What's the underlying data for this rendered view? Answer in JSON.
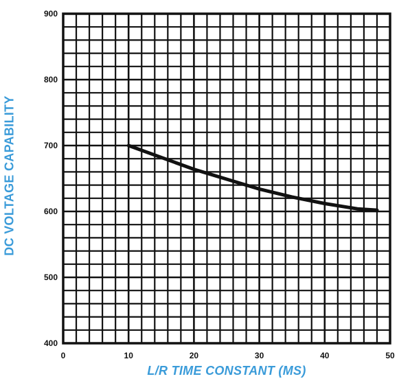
{
  "chart_data": {
    "type": "line",
    "title": "",
    "xlabel": "L/R TIME CONSTANT (MS)",
    "ylabel": "DC VOLTAGE CAPABILITY",
    "xlim": [
      0,
      50
    ],
    "ylim": [
      400,
      900
    ],
    "xticks": [
      0,
      10,
      20,
      30,
      40,
      50
    ],
    "yticks": [
      400,
      500,
      600,
      700,
      800,
      900
    ],
    "grid": true,
    "series": [
      {
        "color": "#111111",
        "x": [
          10,
          15,
          20,
          25,
          30,
          35,
          40,
          45,
          48
        ],
        "y": [
          700,
          682,
          664,
          649,
          634,
          622,
          612,
          604,
          602
        ]
      }
    ]
  }
}
